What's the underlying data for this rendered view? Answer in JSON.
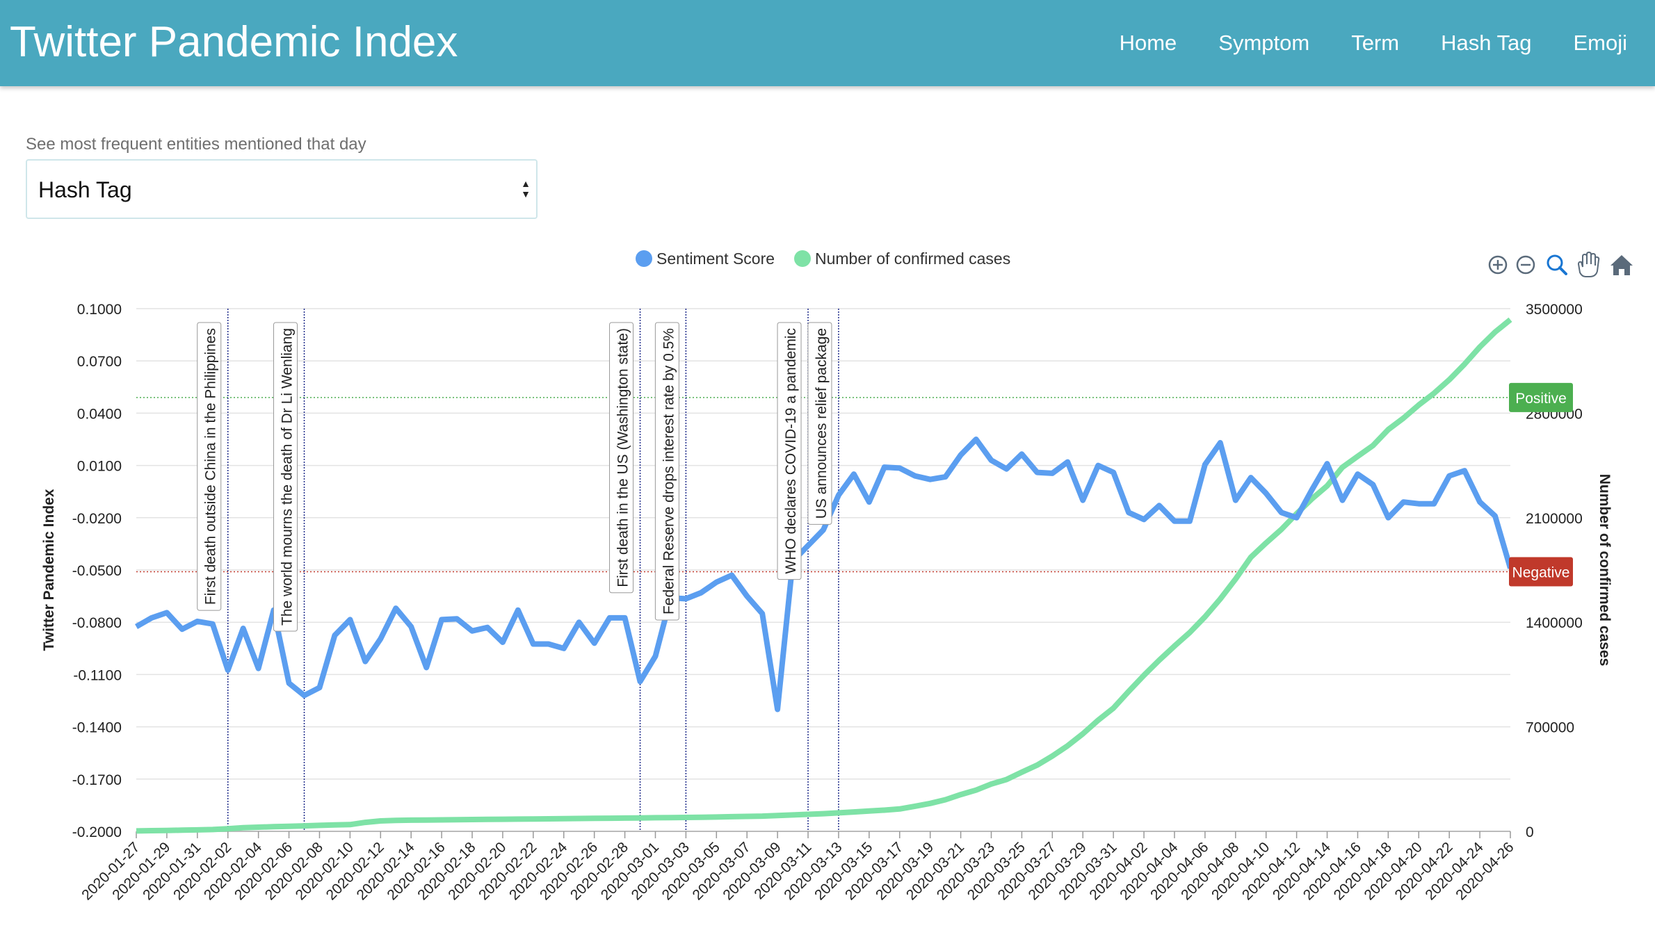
{
  "app": {
    "title": "Twitter Pandemic Index",
    "nav": [
      "Home",
      "Symptom",
      "Term",
      "Hash Tag",
      "Emoji"
    ]
  },
  "selector": {
    "label": "See most frequent entities mentioned that day",
    "value": "Hash Tag"
  },
  "colors": {
    "navbar": "#4aa8bf",
    "sentiment": "#5b9ef0",
    "cases": "#7ee2a6",
    "positive": "#4caf50",
    "negative": "#c0392b",
    "event_line": "#1d2a8a"
  },
  "toolbar_icons": [
    "zoom-in-icon",
    "zoom-out-icon",
    "magnifier-icon",
    "pan-hand-icon",
    "home-icon"
  ],
  "chart_data": {
    "type": "line",
    "title": "",
    "y_left_label": "Twitter Pandemic Index",
    "y_right_label": "Number of confirmed cases",
    "y_left_ticks": [
      "0.1000",
      "0.0700",
      "0.0400",
      "0.0100",
      "-0.0200",
      "-0.0500",
      "-0.0800",
      "-0.1100",
      "-0.1400",
      "-0.1700",
      "-0.2000"
    ],
    "y_right_ticks": [
      "3500000",
      "2800000",
      "2100000",
      "1400000",
      "700000",
      "0"
    ],
    "y_left_range": [
      -0.2,
      0.1
    ],
    "y_right_range": [
      0,
      3500000
    ],
    "x_start": "2020-01-27",
    "x_end": "2020-04-26",
    "x_ticks": [
      "2020-01-27",
      "2020-01-29",
      "2020-01-31",
      "2020-02-02",
      "2020-02-04",
      "2020-02-06",
      "2020-02-08",
      "2020-02-10",
      "2020-02-12",
      "2020-02-14",
      "2020-02-16",
      "2020-02-18",
      "2020-02-20",
      "2020-02-22",
      "2020-02-24",
      "2020-02-26",
      "2020-02-28",
      "2020-03-01",
      "2020-03-03",
      "2020-03-05",
      "2020-03-07",
      "2020-03-09",
      "2020-03-11",
      "2020-03-13",
      "2020-03-15",
      "2020-03-17",
      "2020-03-19",
      "2020-03-21",
      "2020-03-23",
      "2020-03-25",
      "2020-03-27",
      "2020-03-29",
      "2020-03-31",
      "2020-04-02",
      "2020-04-04",
      "2020-04-06",
      "2020-04-08",
      "2020-04-10",
      "2020-04-12",
      "2020-04-14",
      "2020-04-16",
      "2020-04-18",
      "2020-04-20",
      "2020-04-22",
      "2020-04-24",
      "2020-04-26"
    ],
    "grid": true,
    "legend_position": "top-center",
    "series": [
      {
        "name": "Sentiment Score",
        "axis": "left",
        "values": [
          -0.0825,
          -0.0775,
          -0.0745,
          -0.084,
          -0.0795,
          -0.081,
          -0.1075,
          -0.0835,
          -0.1065,
          -0.073,
          -0.115,
          -0.122,
          -0.1175,
          -0.0875,
          -0.0785,
          -0.1025,
          -0.0895,
          -0.072,
          -0.0825,
          -0.106,
          -0.0785,
          -0.078,
          -0.085,
          -0.083,
          -0.0915,
          -0.073,
          -0.0925,
          -0.0925,
          -0.095,
          -0.08,
          -0.092,
          -0.0775,
          -0.0775,
          -0.114,
          -0.0995,
          -0.066,
          -0.0665,
          -0.063,
          -0.057,
          -0.053,
          -0.065,
          -0.075,
          -0.13,
          -0.045,
          -0.036,
          -0.027,
          -0.007,
          0.005,
          -0.011,
          0.009,
          0.0085,
          0.004,
          0.002,
          0.0035,
          0.016,
          0.025,
          0.013,
          0.008,
          0.0165,
          0.006,
          0.0055,
          0.012,
          -0.01,
          0.01,
          0.006,
          -0.017,
          -0.021,
          -0.013,
          -0.022,
          -0.022,
          0.0105,
          0.023,
          -0.01,
          0.003,
          -0.006,
          -0.017,
          -0.02,
          -0.004,
          0.011,
          -0.01,
          0.005,
          -0.001,
          -0.02,
          -0.011,
          -0.012,
          -0.012,
          0.004,
          0.007,
          -0.011,
          -0.019,
          -0.049
        ],
        "reference_lines": [
          {
            "label": "Positive",
            "value": 0.049
          },
          {
            "label": "Negative",
            "value": -0.051
          }
        ]
      },
      {
        "name": "Number of confirmed cases",
        "axis": "right",
        "values": [
          2800,
          4600,
          6000,
          7800,
          9800,
          12000,
          17000,
          24000,
          28000,
          31000,
          34000,
          37000,
          40000,
          43000,
          45000,
          60000,
          70000,
          73000,
          75000,
          76000,
          77000,
          78000,
          79000,
          80000,
          81000,
          82000,
          83000,
          84000,
          85000,
          86000,
          87000,
          88000,
          89000,
          90000,
          91000,
          92000,
          93000,
          94000,
          96000,
          98000,
          100000,
          102000,
          106000,
          110000,
          114000,
          118000,
          124000,
          130000,
          136000,
          142000,
          150000,
          168000,
          187000,
          212000,
          246000,
          276000,
          317000,
          347000,
          396000,
          443000,
          504000,
          573000,
          653000,
          744000,
          825000,
          937000,
          1045000,
          1146000,
          1241000,
          1331000,
          1437000,
          1556000,
          1689000,
          1835000,
          1931000,
          2022000,
          2127000,
          2226000,
          2313000,
          2438000,
          2511000,
          2583000,
          2690000,
          2767000,
          2855000,
          2933000,
          3024000,
          3128000,
          3243000,
          3343000,
          3426000
        ]
      }
    ],
    "events": [
      {
        "date": "2020-02-02",
        "label": "First death outside China in the Philippines"
      },
      {
        "date": "2020-02-07",
        "label": "The world mourns the death of Dr Li Wenliang"
      },
      {
        "date": "2020-02-29",
        "label": "First death in the US (Washington state)"
      },
      {
        "date": "2020-03-03",
        "label": "Federal Reserve drops interest rate by 0.5%"
      },
      {
        "date": "2020-03-11",
        "label": "WHO declares COVID-19 a pandemic"
      },
      {
        "date": "2020-03-13",
        "label": "US announces relief package"
      }
    ]
  }
}
